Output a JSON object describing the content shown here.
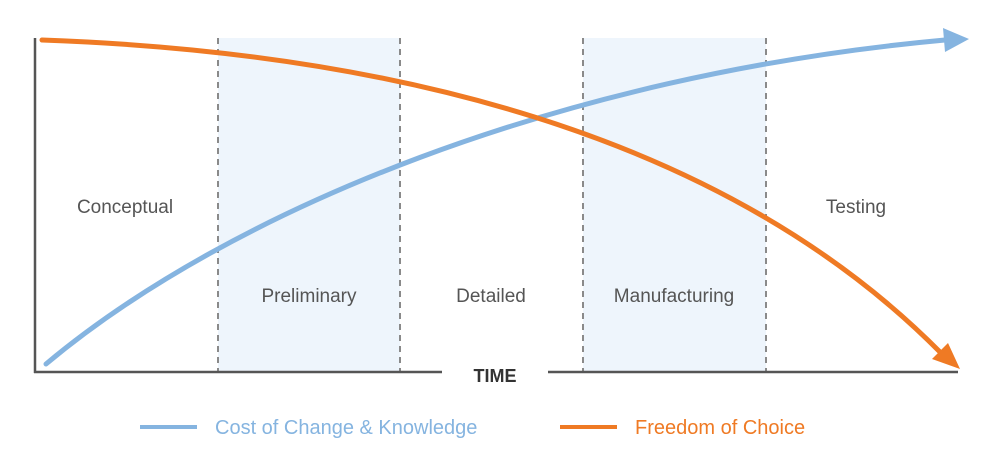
{
  "phases": [
    {
      "label": "Conceptual",
      "shaded": false
    },
    {
      "label": "Preliminary",
      "shaded": true
    },
    {
      "label": "Detailed",
      "shaded": false
    },
    {
      "label": "Manufacturing",
      "shaded": true
    },
    {
      "label": "Testing",
      "shaded": false
    }
  ],
  "axis": {
    "x_label": "TIME"
  },
  "curves": {
    "cost": {
      "label": "Cost of Change & Knowledge",
      "color": "#85b4e0"
    },
    "freedom": {
      "label": "Freedom of Choice",
      "color": "#ef7a24"
    }
  },
  "colors": {
    "shade": "#eef5fc",
    "divider": "#8a8a8a",
    "axis": "#555555"
  }
}
